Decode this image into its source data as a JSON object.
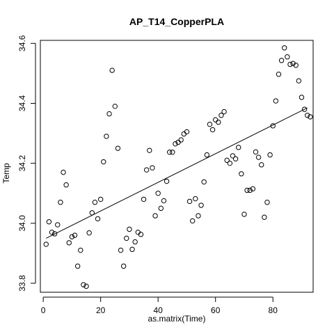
{
  "chart_data": {
    "type": "scatter",
    "title": "AP_T14_CopperPLA",
    "xlabel": "as.matrix(Time)",
    "ylabel": "Temp",
    "xlim": [
      -1,
      94
    ],
    "ylim": [
      33.77,
      34.61
    ],
    "xticks": [
      0,
      20,
      40,
      60,
      80
    ],
    "yticks": [
      33.8,
      34.0,
      34.2,
      34.4,
      34.6
    ],
    "ytick_labels": [
      "33.8",
      "34.0",
      "34.2",
      "34.4",
      "34.6"
    ],
    "grid": false,
    "legend": "none",
    "fit_line": {
      "x": [
        1,
        92
      ],
      "y": [
        33.95,
        34.385
      ]
    },
    "series": [
      {
        "x": [
          1,
          2,
          3,
          4,
          5,
          6,
          7,
          8,
          9,
          10,
          11,
          12,
          13,
          14,
          15,
          16,
          17,
          18,
          19,
          20,
          21,
          22,
          23,
          24,
          25,
          26,
          27,
          28,
          29,
          30,
          31,
          32,
          33,
          34,
          35,
          36,
          37,
          38,
          39,
          40,
          41,
          42,
          43,
          44,
          45,
          46,
          47,
          48,
          49,
          50,
          51,
          52,
          53,
          54,
          55,
          56,
          57,
          58,
          59,
          60,
          61,
          62,
          63,
          64,
          65,
          66,
          67,
          68,
          69,
          70,
          71,
          72,
          73,
          74,
          75,
          76,
          77,
          78,
          79,
          80,
          81,
          82,
          83,
          84,
          85,
          86,
          87,
          88,
          89,
          90,
          91,
          92,
          93
        ],
        "y": [
          33.93,
          34.005,
          33.97,
          33.965,
          33.995,
          34.07,
          34.17,
          34.128,
          33.935,
          33.955,
          33.96,
          33.857,
          33.91,
          33.795,
          33.79,
          33.968,
          34.035,
          34.07,
          34.015,
          34.08,
          34.205,
          34.29,
          34.365,
          34.51,
          34.39,
          34.25,
          33.91,
          33.857,
          33.95,
          33.98,
          33.913,
          33.938,
          33.97,
          33.963,
          34.08,
          34.178,
          34.243,
          34.185,
          34.025,
          34.1,
          34.05,
          34.075,
          34.14,
          34.237,
          34.237,
          34.265,
          34.27,
          34.278,
          34.298,
          34.305,
          34.073,
          34.008,
          34.082,
          34.025,
          34.06,
          34.138,
          34.228,
          34.33,
          34.312,
          34.345,
          34.337,
          34.36,
          34.372,
          34.21,
          34.2,
          34.225,
          34.215,
          34.253,
          34.165,
          34.03,
          34.11,
          34.11,
          34.115,
          34.238,
          34.22,
          34.195,
          34.02,
          34.07,
          34.228,
          34.325,
          34.408,
          34.497,
          34.543,
          34.585,
          34.555,
          34.53,
          34.533,
          34.527,
          34.475,
          34.42,
          34.38,
          34.36,
          34.355
        ]
      }
    ]
  }
}
